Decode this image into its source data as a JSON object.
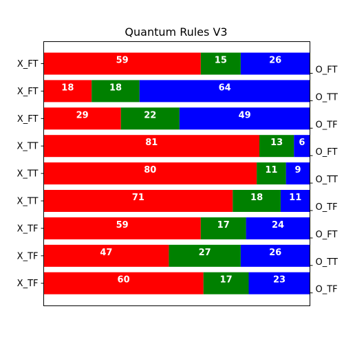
{
  "chart_data": {
    "type": "bar",
    "orientation": "horizontal",
    "stacked": true,
    "title": "Quantum Rules V3",
    "categories": [
      "X_FT",
      "X_FT",
      "X_FT",
      "X_TT",
      "X_TT",
      "X_TT",
      "X_TF",
      "X_TF",
      "X_TF"
    ],
    "secondary_labels": [
      "O_FT",
      "O_TT",
      "O_TF",
      "O_FT",
      "O_TT",
      "O_TF",
      "O_FT",
      "O_TT",
      "O_TF"
    ],
    "series": [
      {
        "color": "#ff0000",
        "values": [
          59,
          18,
          29,
          81,
          80,
          71,
          59,
          47,
          60
        ]
      },
      {
        "color": "#008000",
        "values": [
          15,
          18,
          22,
          13,
          11,
          18,
          17,
          27,
          17
        ]
      },
      {
        "color": "#0000ff",
        "values": [
          26,
          64,
          49,
          6,
          9,
          11,
          24,
          26,
          23
        ]
      }
    ],
    "xlim": [
      0,
      100
    ],
    "xlabel": "",
    "ylabel": "",
    "x_ticks_visible": false,
    "grid": false,
    "legend": "none"
  }
}
